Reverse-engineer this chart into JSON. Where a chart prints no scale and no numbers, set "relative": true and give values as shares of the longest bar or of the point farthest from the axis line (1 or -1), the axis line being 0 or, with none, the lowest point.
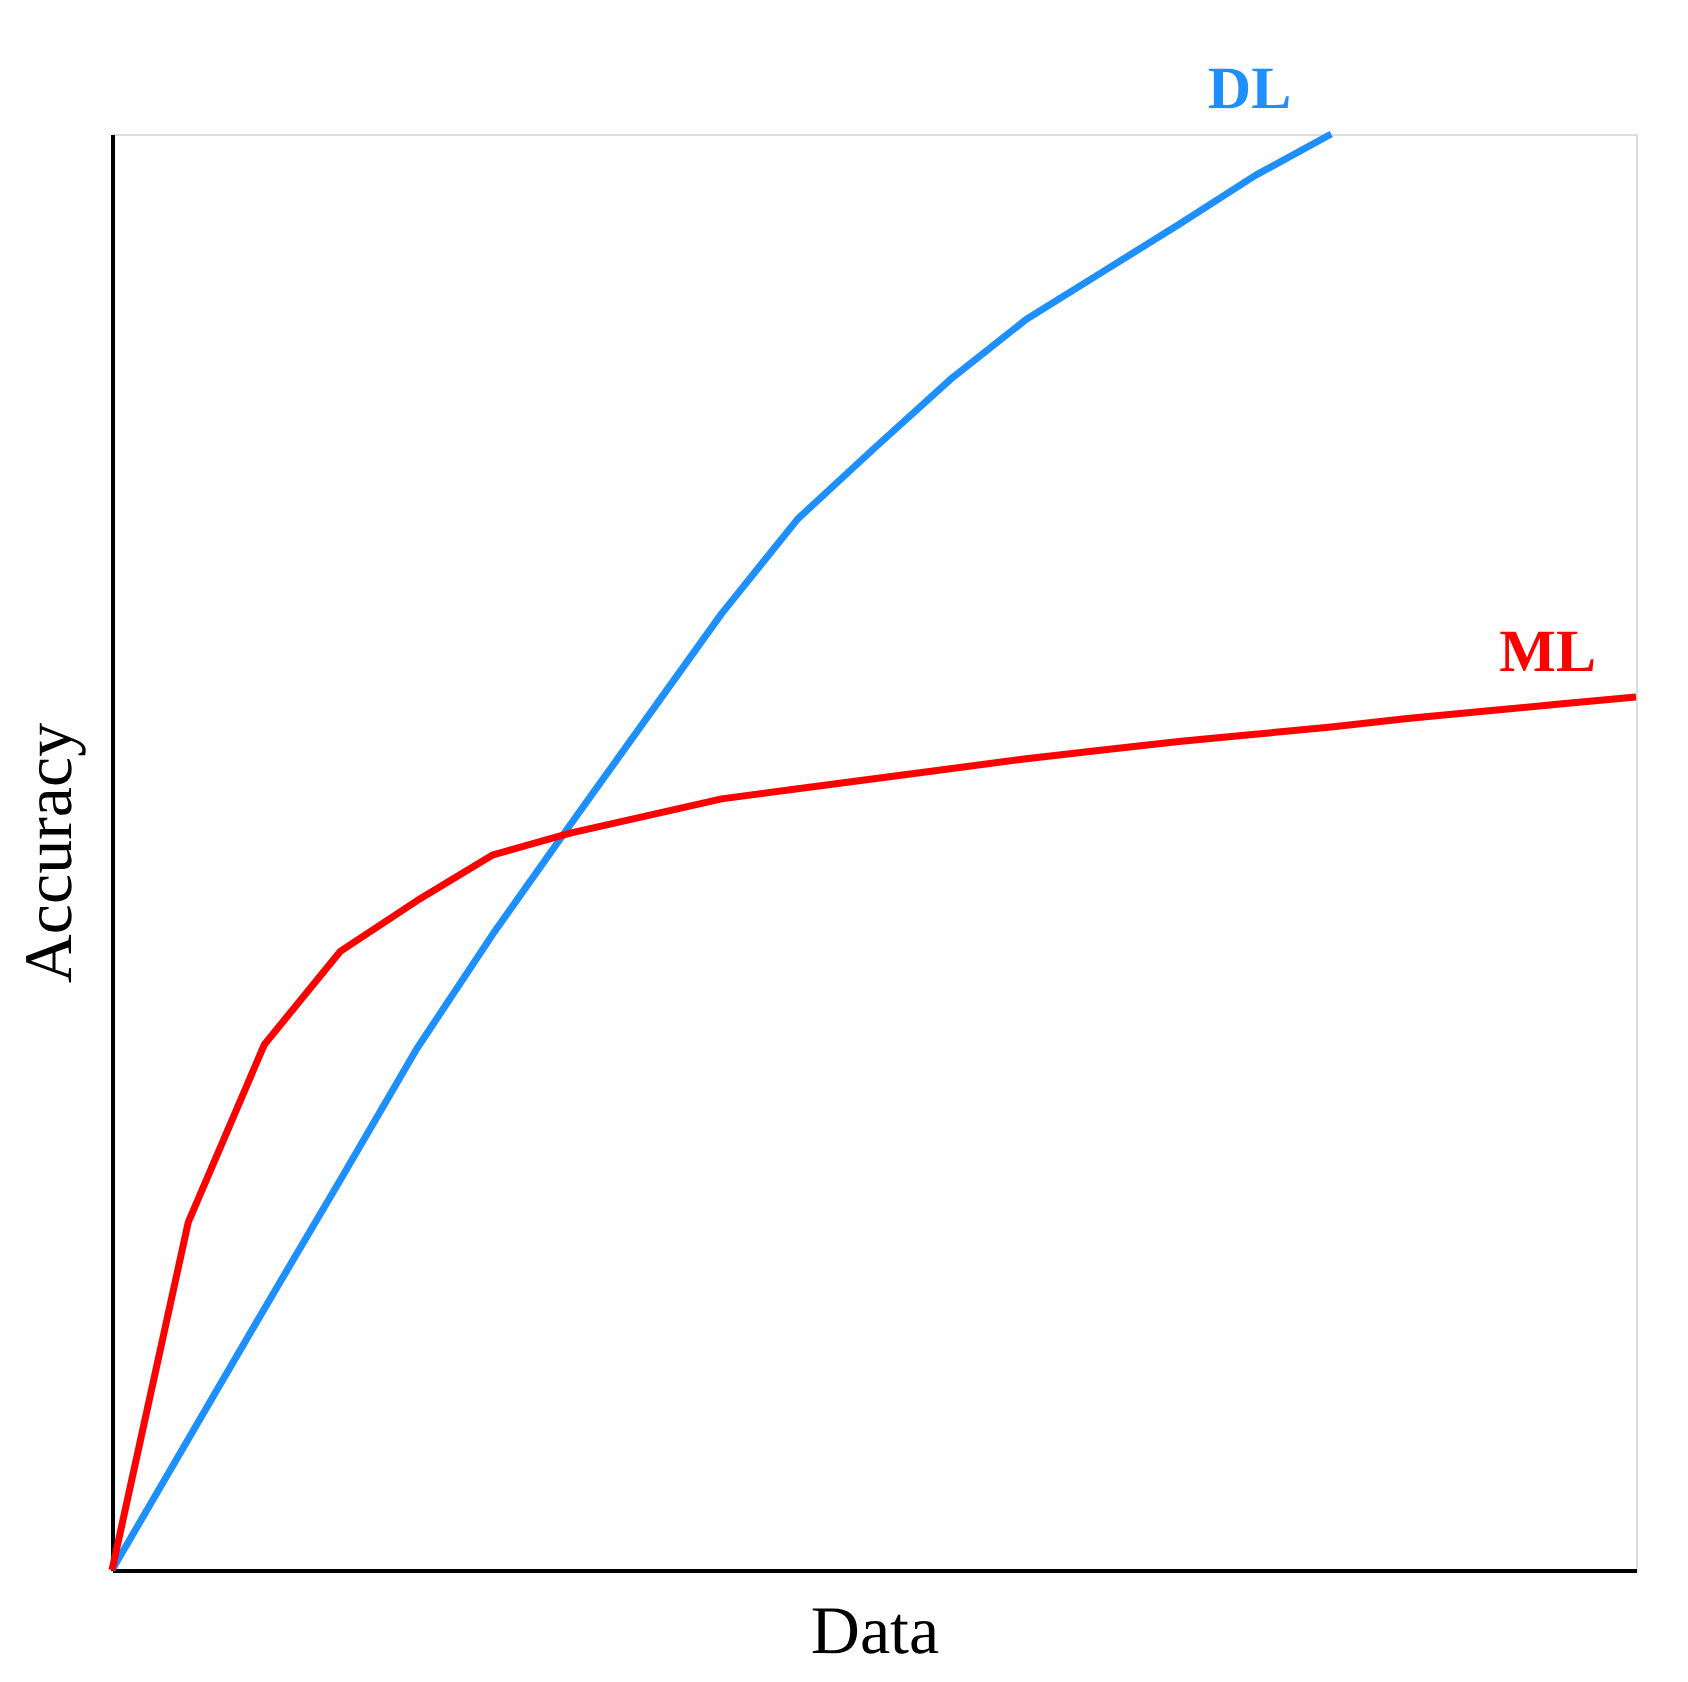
{
  "chart_data": {
    "type": "line",
    "relative": true,
    "xlabel": "Data",
    "ylabel": "Accuracy",
    "grid": false,
    "line_style": "solid",
    "categories": [
      null,
      null,
      null,
      null,
      null,
      null,
      null,
      null,
      null,
      null,
      null,
      null,
      null,
      null,
      null,
      null,
      null,
      null,
      null,
      null,
      null
    ],
    "series": [
      {
        "name": "DL",
        "color": "#1e8fff",
        "values": [
          0,
          0.091,
          0.182,
          0.272,
          0.363,
          0.443,
          0.518,
          0.592,
          0.666,
          0.732,
          0.781,
          0.829,
          0.871,
          0.904,
          0.937,
          0.971,
          1.0,
          null,
          null,
          null,
          null
        ]
      },
      {
        "name": "ML",
        "color": "#ff0000",
        "values": [
          0,
          0.242,
          0.366,
          0.431,
          0.466,
          0.498,
          0.513,
          0.525,
          0.537,
          0.544,
          0.551,
          0.558,
          0.565,
          0.571,
          0.577,
          0.582,
          0.587,
          0.593,
          0.598,
          0.603,
          0.608
        ]
      }
    ]
  }
}
